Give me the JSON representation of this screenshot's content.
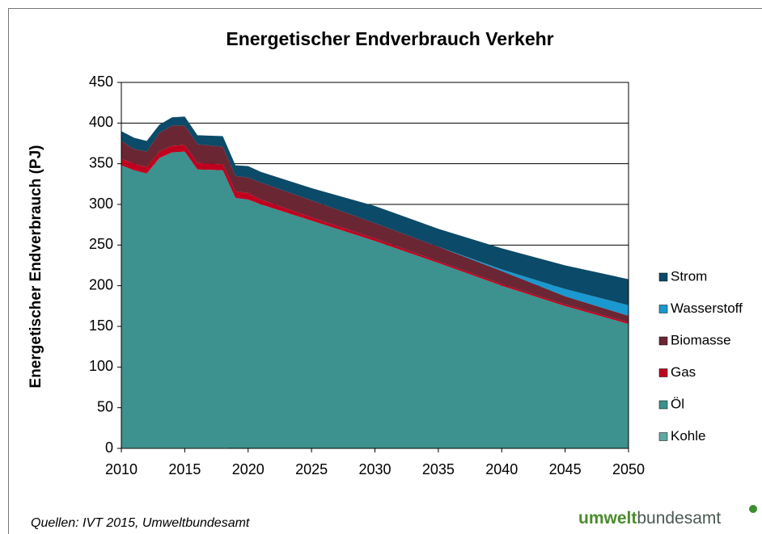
{
  "chart_data": {
    "type": "stacked_area",
    "title": "Energetischer Endverbrauch Verkehr",
    "y_label": "Energetischer Endverbrauch (PJ)",
    "x": [
      2010,
      2011,
      2012,
      2013,
      2014,
      2015,
      2016,
      2018,
      2019,
      2020,
      2021,
      2025,
      2030,
      2035,
      2040,
      2045,
      2050
    ],
    "xlim": [
      2010,
      2050
    ],
    "xticks": [
      2010,
      2015,
      2020,
      2025,
      2030,
      2035,
      2040,
      2045,
      2050
    ],
    "ylim": [
      0,
      450
    ],
    "yticks": [
      0,
      50,
      100,
      150,
      200,
      250,
      300,
      350,
      400,
      450
    ],
    "grid": true,
    "legend": "right",
    "series": [
      {
        "name": "Kohle",
        "color": "#5fa8a2",
        "values": [
          1,
          1,
          1,
          1,
          1,
          1,
          1,
          1,
          0,
          0,
          0,
          0,
          0,
          0,
          0,
          0,
          0
        ]
      },
      {
        "name": "Öl",
        "color": "#3d918e",
        "values": [
          347,
          341,
          337,
          356,
          363,
          364,
          342,
          341,
          308,
          306,
          300,
          280,
          255,
          228,
          200,
          175,
          153
        ]
      },
      {
        "name": "Gas",
        "color": "#c0001e",
        "values": [
          8,
          8,
          8,
          8,
          8,
          8,
          8,
          7,
          8,
          8,
          6,
          4,
          3,
          2,
          2,
          2,
          2
        ]
      },
      {
        "name": "Biomasse",
        "color": "#6b2633",
        "values": [
          22,
          18,
          19,
          23,
          25,
          24,
          23,
          22,
          19,
          19,
          21,
          21,
          19,
          18,
          16,
          10,
          8
        ]
      },
      {
        "name": "Wasserstoff",
        "color": "#1a98d0",
        "values": [
          0,
          0,
          0,
          0,
          0,
          0,
          0,
          0,
          0,
          0,
          0,
          0,
          0,
          0,
          2,
          9,
          13
        ]
      },
      {
        "name": "Strom",
        "color": "#0b4a68",
        "values": [
          12,
          14,
          13,
          10,
          10,
          11,
          11,
          13,
          13,
          14,
          13,
          15,
          21,
          22,
          26,
          29,
          32
        ]
      }
    ]
  },
  "footer": {
    "source": "Quellen: IVT 2015, Umweltbundesamt",
    "logo_bold": "umwelt",
    "logo_rest": "bundesamt"
  }
}
